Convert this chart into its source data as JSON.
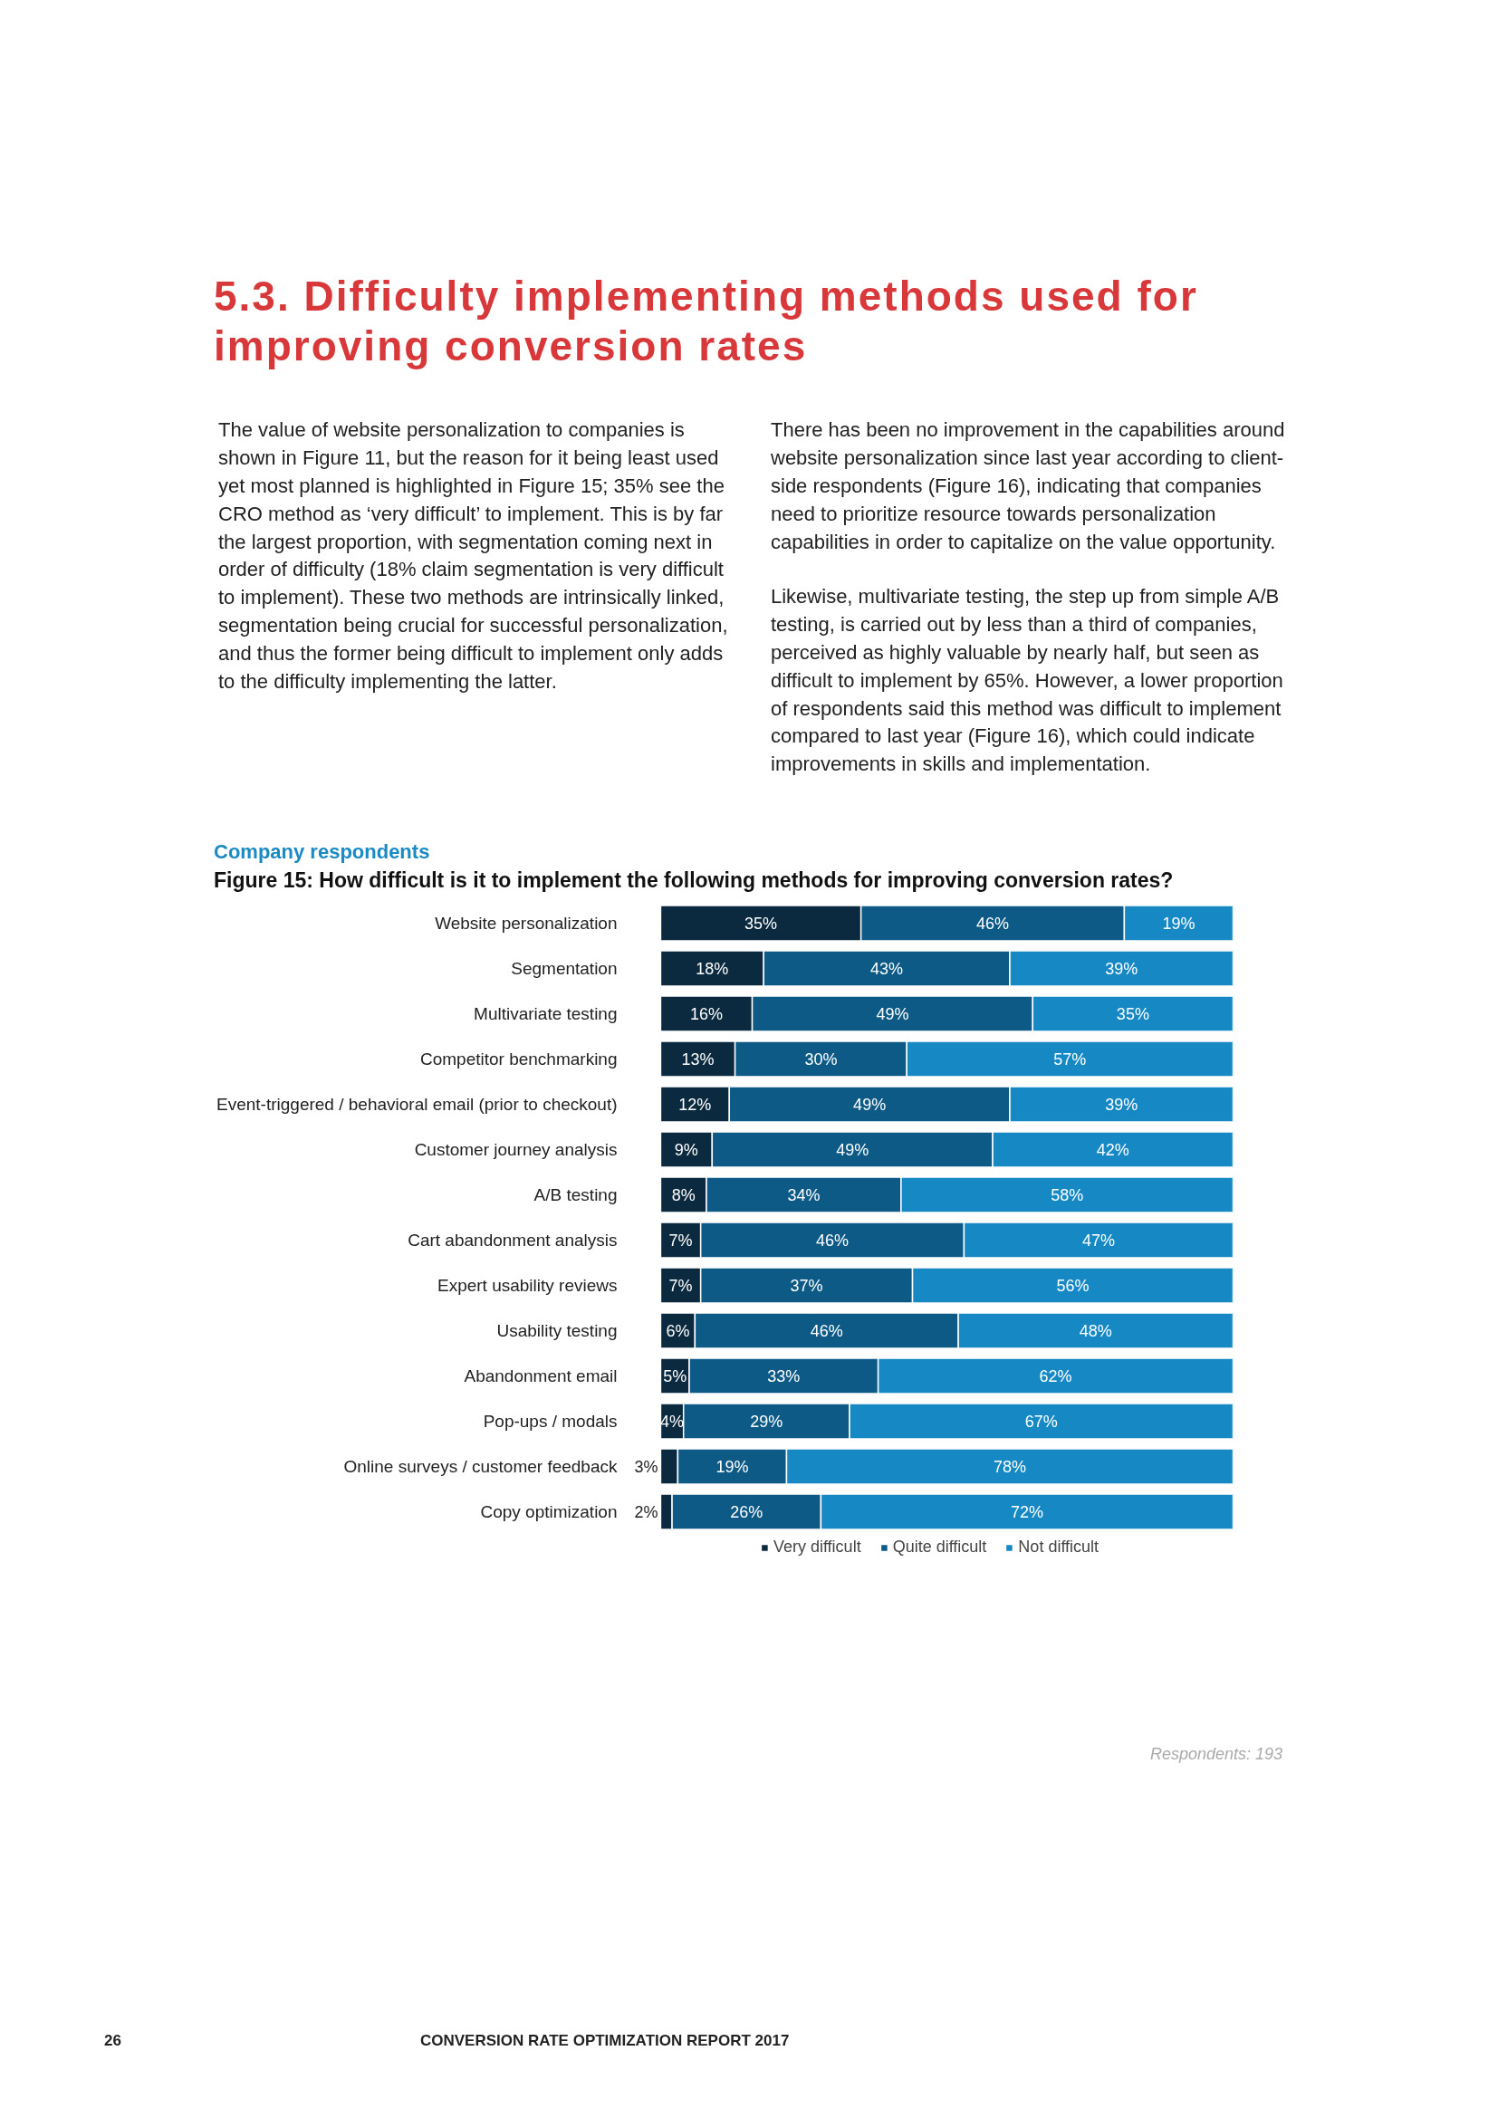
{
  "chart_data": {
    "type": "bar",
    "orientation": "horizontal",
    "stacked": true,
    "title": "Figure 15: How difficult is it to implement the following methods for improving conversion rates?",
    "subtitle": "Company respondents",
    "categories": [
      "Website personalization",
      "Segmentation",
      "Multivariate testing",
      "Competitor benchmarking",
      "Event-triggered / behavioral email (prior to checkout)",
      "Customer journey analysis",
      "A/B testing",
      "Cart abandonment analysis",
      "Expert usability reviews",
      "Usability testing",
      "Abandonment email",
      "Pop-ups / modals",
      "Online surveys / customer feedback",
      "Copy optimization"
    ],
    "series": [
      {
        "name": "Very difficult",
        "color": "#0b2a40",
        "values": [
          35,
          18,
          16,
          13,
          12,
          9,
          8,
          7,
          7,
          6,
          5,
          4,
          3,
          2
        ],
        "value_labels": [
          "35%",
          "18%",
          "16%",
          "13%",
          "12%",
          "9%",
          "8%",
          "7%",
          "7%",
          "6%",
          "5%",
          "4%",
          "3%",
          "2%"
        ]
      },
      {
        "name": "Quite difficult",
        "color": "#0d5a86",
        "values": [
          46,
          43,
          49,
          30,
          49,
          49,
          34,
          46,
          37,
          46,
          33,
          29,
          19,
          26
        ],
        "value_labels": [
          "46%",
          "43%",
          "49%",
          "30%",
          "49%",
          "49%",
          "34%",
          "46%",
          "37%",
          "46%",
          "33%",
          "29%",
          "19%",
          "26%"
        ]
      },
      {
        "name": "Not difficult",
        "color": "#1689c5",
        "values": [
          19,
          39,
          35,
          57,
          39,
          42,
          58,
          47,
          56,
          48,
          62,
          67,
          78,
          72
        ],
        "value_labels": [
          "19%",
          "39%",
          "35%",
          "57%",
          "39%",
          "42%",
          "58%",
          "47%",
          "56%",
          "48%",
          "62%",
          "67%",
          "78%",
          "72%"
        ]
      }
    ],
    "tick_labels": "y",
    "grid": false,
    "legend": "bottom",
    "annotations": [
      "5.3. Difficulty implementing methods used for improving conversion rates",
      "The value of website personalization to companies is shown in Figure 11, but the reason for it being least used yet most planned is highlighted in Figure 15; 35% see the CRO method as ‘very difficult’ to implement. This is by far the largest proportion, with segmentation coming next in order of difficulty (18% claim segmentation is very difficult to implement). These two methods are intrinsically linked, segmentation being crucial for successful personalization, and thus the former being difficult to implement only adds to the difficulty implementing the latter.",
      "There has been no improvement in the capabilities around website personalization since last year according to client-side respondents (Figure 16), indicating that companies need to prioritize resource towards personalization capabilities in order to capitalize on the value opportunity.",
      "Likewise, multivariate testing, the step up from simple A/B testing, is carried out by less than a third of companies, perceived as highly valuable by nearly half, but seen as difficult to implement by 65%. However, a lower proportion of respondents said this method was difficult to implement compared to last year (Figure 16), which could indicate improvements in skills and implementation.",
      "Respondents: 193",
      "26",
      "CONVERSION RATE OPTIMIZATION REPORT 2017"
    ]
  }
}
